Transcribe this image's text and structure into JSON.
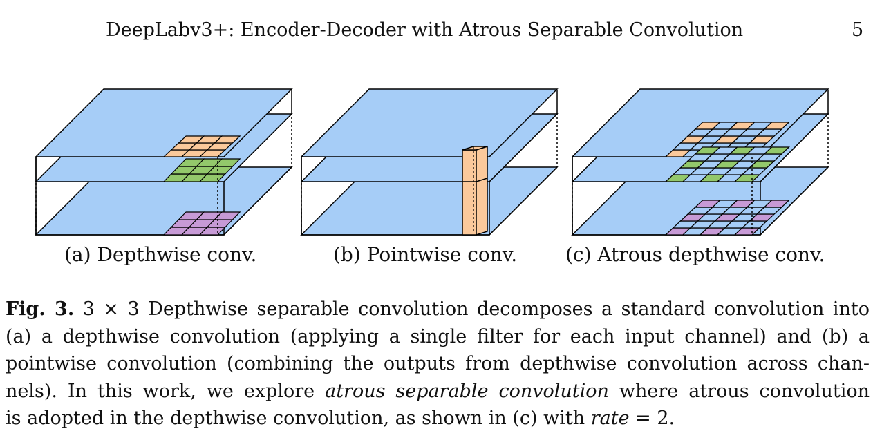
{
  "header": {
    "title": "DeepLabv3+: Encoder-Decoder with Atrous Separable Convolution",
    "page_number": "5"
  },
  "figure": {
    "subcaptions": [
      "(a) Depthwise conv.",
      "(b) Pointwise conv.",
      "(c) Atrous depthwise conv."
    ],
    "colors": {
      "plane": "#a6cdf7",
      "orange": "#fbc99b",
      "green": "#93c86b",
      "purple": "#c79ad6",
      "stroke": "#000000"
    }
  },
  "caption": {
    "label": "Fig. 3.",
    "line1_rest": "3 × 3 Depthwise separable convolution decomposes a standard convolution into",
    "line2": "(a) a depthwise convolution (applying a single filter for each input channel) and (b) a",
    "line3": "pointwise convolution (combining the outputs from depthwise convolution across chan-",
    "line4_a": "nels). In this work, we explore",
    "line4_italic": "atrous separable convolution",
    "line4_b": "where atrous convolution",
    "line5_a": "is adopted in the depthwise convolution, as shown in (c) with",
    "line5_italic": "rate",
    "line5_b": "= 2."
  }
}
